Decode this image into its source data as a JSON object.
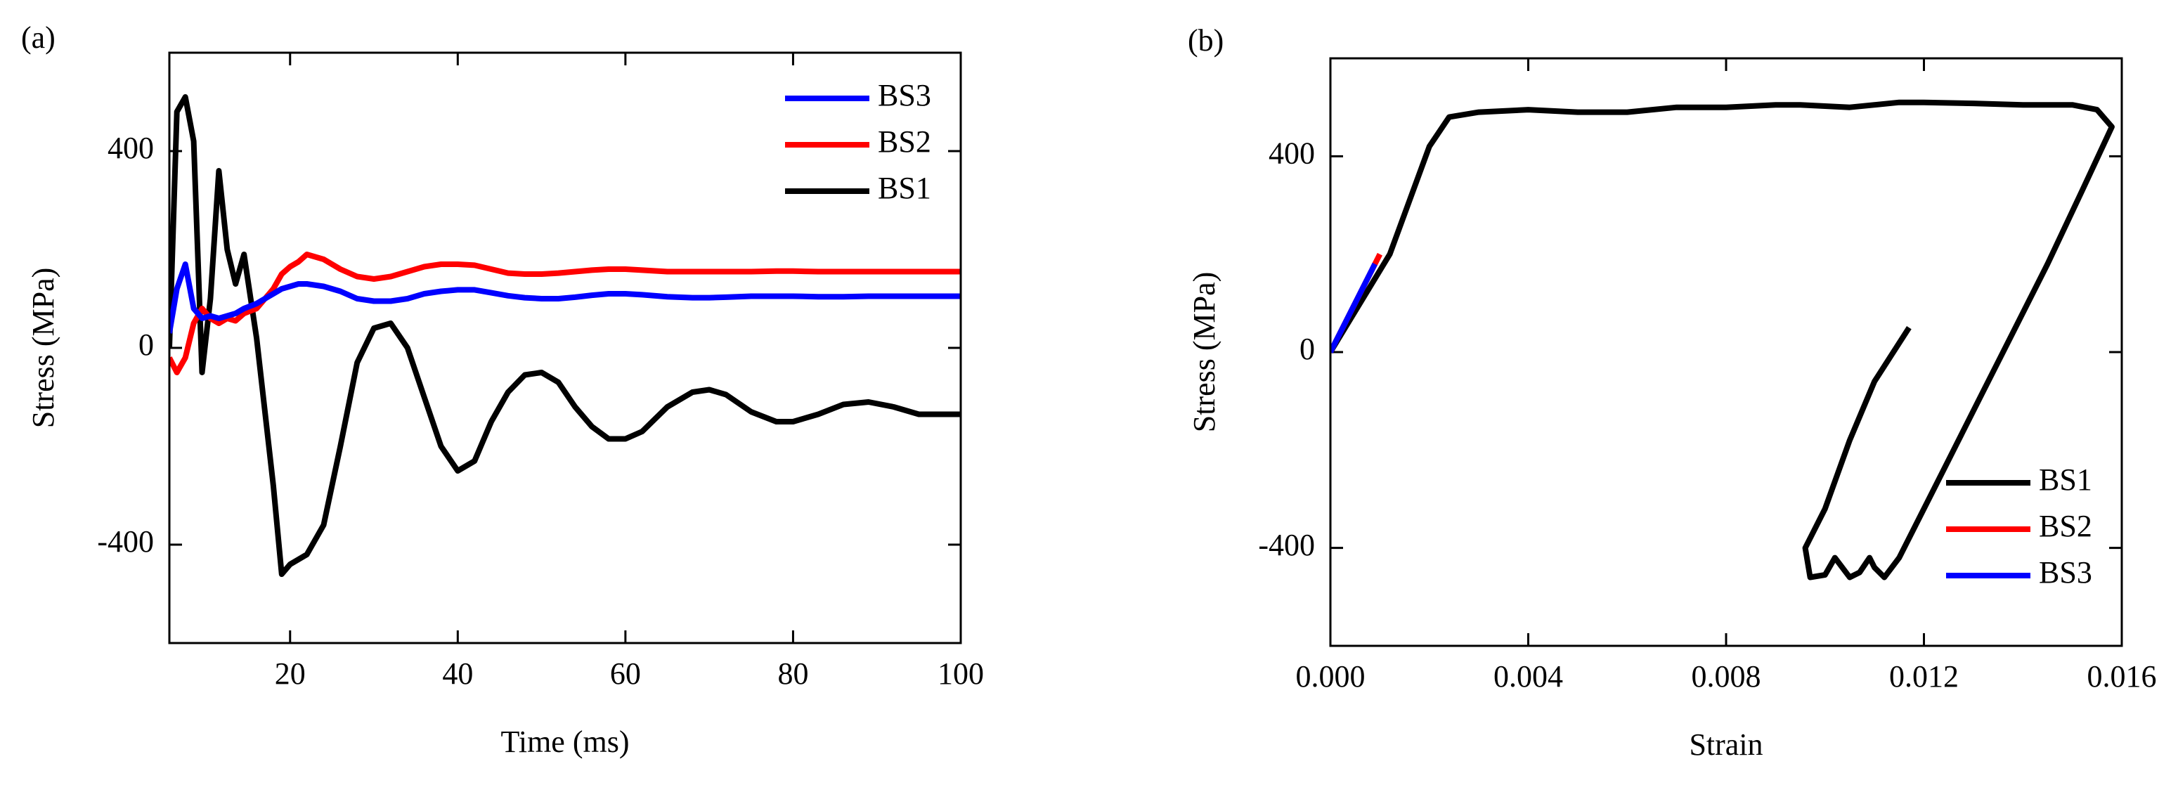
{
  "chart_data": [
    {
      "type": "line",
      "panel_label": "(a)",
      "xlabel": "Time (ms)",
      "ylabel": "Stress (MPa)",
      "xlim": [
        5.6,
        100
      ],
      "xticks": [
        20,
        40,
        60,
        80,
        100
      ],
      "ylim": [
        -600,
        600
      ],
      "yticks": [
        -400,
        0,
        400
      ],
      "legend": "upper right",
      "x": [
        5.6,
        6.5,
        7.5,
        8.5,
        9.5,
        10.5,
        11.5,
        12.5,
        13.5,
        14.5,
        16,
        18,
        19,
        20,
        21,
        22,
        24,
        26,
        28,
        30,
        32,
        34,
        36,
        38,
        40,
        42,
        44,
        46,
        48,
        50,
        52,
        54,
        56,
        58,
        60,
        62,
        65,
        68,
        70,
        72,
        75,
        78,
        80,
        83,
        86,
        89,
        92,
        95,
        100
      ],
      "series": [
        {
          "name": "BS3",
          "color": "#0000ff",
          "values": [
            30,
            120,
            170,
            80,
            60,
            65,
            60,
            65,
            70,
            80,
            90,
            110,
            120,
            125,
            130,
            130,
            125,
            115,
            100,
            95,
            95,
            100,
            110,
            115,
            118,
            118,
            112,
            106,
            102,
            100,
            100,
            103,
            107,
            110,
            110,
            108,
            104,
            102,
            102,
            103,
            105,
            105,
            105,
            104,
            104,
            105,
            105,
            105,
            105
          ]
        },
        {
          "name": "BS2",
          "color": "#ff0000",
          "values": [
            -20,
            -50,
            -20,
            50,
            80,
            60,
            50,
            60,
            55,
            70,
            80,
            120,
            150,
            165,
            175,
            190,
            180,
            160,
            145,
            140,
            145,
            155,
            165,
            170,
            170,
            168,
            160,
            152,
            150,
            150,
            152,
            155,
            158,
            160,
            160,
            158,
            155,
            155,
            155,
            155,
            155,
            156,
            156,
            155,
            155,
            155,
            155,
            155,
            155
          ]
        },
        {
          "name": "BS1",
          "color": "#000000",
          "values": [
            0,
            480,
            510,
            420,
            -50,
            100,
            360,
            200,
            130,
            190,
            20,
            -280,
            -460,
            -440,
            -430,
            -420,
            -360,
            -200,
            -30,
            40,
            50,
            0,
            -100,
            -200,
            -250,
            -230,
            -150,
            -90,
            -55,
            -50,
            -70,
            -120,
            -160,
            -185,
            -185,
            -170,
            -120,
            -90,
            -85,
            -95,
            -130,
            -150,
            -150,
            -135,
            -115,
            -110,
            -120,
            -135,
            -135
          ]
        }
      ]
    },
    {
      "type": "line",
      "panel_label": "(b)",
      "xlabel": "Strain",
      "ylabel": "Stress (MPa)",
      "xlim": [
        0,
        0.016
      ],
      "xticks": [
        {
          "value": 0,
          "label": "0.000"
        },
        {
          "value": 0.004,
          "label": "0.004"
        },
        {
          "value": 0.008,
          "label": "0.008"
        },
        {
          "value": 0.012,
          "label": "0.012"
        },
        {
          "value": 0.016,
          "label": "0.016"
        }
      ],
      "ylim": [
        -600,
        600
      ],
      "yticks": [
        -400,
        0,
        400
      ],
      "legend": "lower right",
      "series": [
        {
          "name": "BS1",
          "color": "#000000",
          "x": [
            0,
            0.0012,
            0.002,
            0.0024,
            0.003,
            0.004,
            0.005,
            0.006,
            0.007,
            0.008,
            0.009,
            0.0095,
            0.0105,
            0.0115,
            0.012,
            0.013,
            0.014,
            0.015,
            0.0155,
            0.0158,
            0.0152,
            0.0145,
            0.0138,
            0.0132,
            0.0125,
            0.012,
            0.0115,
            0.0112,
            0.011,
            0.0109,
            0.0107,
            0.0105,
            0.0102,
            0.01,
            0.0097,
            0.0096,
            0.01,
            0.0105,
            0.011,
            0.0117
          ],
          "values": [
            0,
            200,
            420,
            480,
            490,
            495,
            490,
            490,
            500,
            500,
            505,
            505,
            500,
            510,
            510,
            508,
            505,
            505,
            495,
            460,
            330,
            180,
            40,
            -80,
            -220,
            -320,
            -420,
            -460,
            -440,
            -420,
            -450,
            -460,
            -420,
            -455,
            -460,
            -400,
            -320,
            -180,
            -60,
            50
          ]
        },
        {
          "name": "BS2",
          "color": "#ff0000",
          "x": [
            0,
            0.001
          ],
          "values": [
            0,
            200
          ]
        },
        {
          "name": "BS3",
          "color": "#0000ff",
          "x": [
            0,
            0.0009
          ],
          "values": [
            0,
            180
          ]
        }
      ]
    }
  ]
}
